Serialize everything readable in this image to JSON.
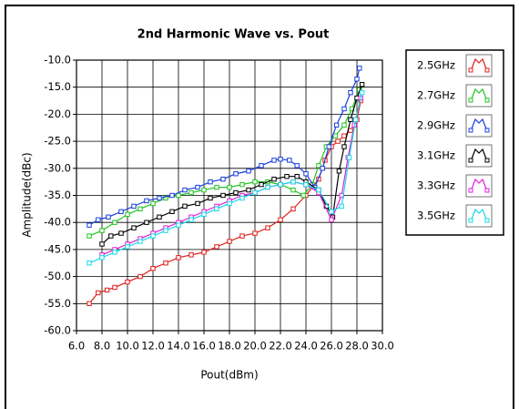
{
  "chart_data": {
    "type": "line",
    "title": "2nd Harmonic Wave vs. Pout",
    "x_label": "Pout(dBm)",
    "y_label": "Amplitude(dBc)",
    "xlim": [
      6,
      30
    ],
    "ylim": [
      -60,
      -10
    ],
    "xticks": [
      {
        "value": 6,
        "label": "6.0"
      },
      {
        "value": 8,
        "label": "8.0"
      },
      {
        "value": 10,
        "label": "10.0"
      },
      {
        "value": 12,
        "label": "12.0"
      },
      {
        "value": 14,
        "label": "14.0"
      },
      {
        "value": 16,
        "label": "16.0"
      },
      {
        "value": 18,
        "label": "18.0"
      },
      {
        "value": 20,
        "label": "20.0"
      },
      {
        "value": 22,
        "label": "22.0"
      },
      {
        "value": 24,
        "label": "24.0"
      },
      {
        "value": 26,
        "label": "26.0"
      },
      {
        "value": 28,
        "label": "28.0"
      },
      {
        "value": 30,
        "label": "30.0"
      }
    ],
    "yticks": [
      {
        "value": -10,
        "label": "-10.0"
      },
      {
        "value": -15,
        "label": "-15.0"
      },
      {
        "value": -20,
        "label": "-20.0"
      },
      {
        "value": -25,
        "label": "-25.0"
      },
      {
        "value": -30,
        "label": "-30.0"
      },
      {
        "value": -35,
        "label": "-35.0"
      },
      {
        "value": -40,
        "label": "-40.0"
      },
      {
        "value": -45,
        "label": "-45.0"
      },
      {
        "value": -50,
        "label": "-50.0"
      },
      {
        "value": -55,
        "label": "-55.0"
      },
      {
        "value": -60,
        "label": "-60.0"
      }
    ],
    "grid": true,
    "legend": "right",
    "series": [
      {
        "name": "2.5GHz",
        "color": "#e0201b",
        "x": [
          7,
          7.7,
          8.4,
          9,
          10,
          11,
          12,
          13,
          14,
          15,
          16,
          17,
          18,
          19,
          20,
          21,
          22,
          23,
          24,
          25,
          25.5,
          26,
          26.5,
          27,
          27.5,
          28,
          28.3
        ],
        "values": [
          -55,
          -53,
          -52.5,
          -52,
          -51,
          -50,
          -48.5,
          -47.5,
          -46.5,
          -46,
          -45.5,
          -44.5,
          -43.5,
          -42.5,
          -42,
          -41,
          -39.5,
          -37.5,
          -35,
          -32,
          -28.5,
          -26,
          -25,
          -24,
          -23,
          -21,
          -17.5
        ]
      },
      {
        "name": "2.7GHz",
        "color": "#22c422",
        "x": [
          7,
          8,
          9,
          10,
          11,
          12,
          13,
          14,
          15,
          16,
          17,
          18,
          19,
          20,
          21,
          22,
          23,
          23.8,
          24.5,
          25,
          25.6,
          26.3,
          27,
          27.6,
          28.2
        ],
        "values": [
          -42.5,
          -41.5,
          -40,
          -38.5,
          -37.5,
          -36.5,
          -35.5,
          -35,
          -34.5,
          -34,
          -33.5,
          -33.5,
          -33,
          -32.5,
          -32.5,
          -33,
          -34,
          -35,
          -33,
          -29.5,
          -26,
          -24,
          -22,
          -19,
          -15.5
        ]
      },
      {
        "name": "2.9GHz",
        "color": "#1a3fe0",
        "x": [
          7,
          7.7,
          8.5,
          9.5,
          10.5,
          11.5,
          12.5,
          13.5,
          14.5,
          15.5,
          16.5,
          17.5,
          18.5,
          19.5,
          20.5,
          21.5,
          22,
          22.7,
          23.3,
          24,
          24.7,
          25.3,
          25.8,
          26.4,
          27,
          27.5,
          28,
          28.2
        ],
        "values": [
          -40.5,
          -39.5,
          -39,
          -38,
          -37,
          -36,
          -35.5,
          -35,
          -34,
          -33.5,
          -32.5,
          -32,
          -31,
          -30.5,
          -29.5,
          -28.5,
          -28.3,
          -28.5,
          -29.5,
          -31,
          -33.5,
          -30,
          -26,
          -22,
          -19,
          -16,
          -13.5,
          -11.5
        ]
      },
      {
        "name": "3.1GHz",
        "color": "#000000",
        "x": [
          8,
          8.7,
          9.5,
          10.5,
          11.5,
          12.5,
          13.5,
          14.5,
          15.5,
          16.5,
          17.5,
          18.5,
          19.5,
          20.5,
          21.5,
          22.5,
          23.3,
          24,
          25,
          25.6,
          26.1,
          26.6,
          27,
          27.5,
          28,
          28.4
        ],
        "values": [
          -44,
          -42.5,
          -42,
          -41,
          -40,
          -39,
          -38,
          -37,
          -36.5,
          -35.5,
          -35,
          -34.5,
          -34,
          -33,
          -32,
          -31.5,
          -31.5,
          -32.5,
          -34,
          -37,
          -39,
          -30.5,
          -26,
          -21,
          -17,
          -14.5
        ]
      },
      {
        "name": "3.3GHz",
        "color": "#e020d8",
        "x": [
          8,
          9,
          10,
          11,
          12,
          13,
          14,
          15,
          16,
          17,
          18,
          19,
          20,
          21,
          22,
          23,
          24,
          25,
          26,
          26.8,
          27.3,
          27.8,
          28.3
        ],
        "values": [
          -46,
          -45,
          -44,
          -43,
          -42,
          -41,
          -40,
          -39,
          -38,
          -37,
          -36,
          -35,
          -34.5,
          -33.5,
          -33,
          -32.5,
          -33,
          -34.5,
          -39.5,
          -35,
          -28,
          -22,
          -17
        ]
      },
      {
        "name": "3.5GHz",
        "color": "#18d8e8",
        "x": [
          7,
          8,
          9,
          10,
          11,
          12,
          13,
          14,
          15,
          16,
          17,
          18,
          19,
          20,
          21,
          22,
          23,
          24,
          25,
          26,
          26.8,
          27.4,
          27.9,
          28.4
        ],
        "values": [
          -47.5,
          -46.5,
          -45.5,
          -44.5,
          -43.5,
          -42.5,
          -41.5,
          -40.5,
          -39.5,
          -38.5,
          -37.5,
          -36.5,
          -35.5,
          -34.5,
          -33.5,
          -33,
          -32.5,
          -33,
          -34,
          -38,
          -37,
          -28,
          -21,
          -16
        ]
      }
    ]
  }
}
